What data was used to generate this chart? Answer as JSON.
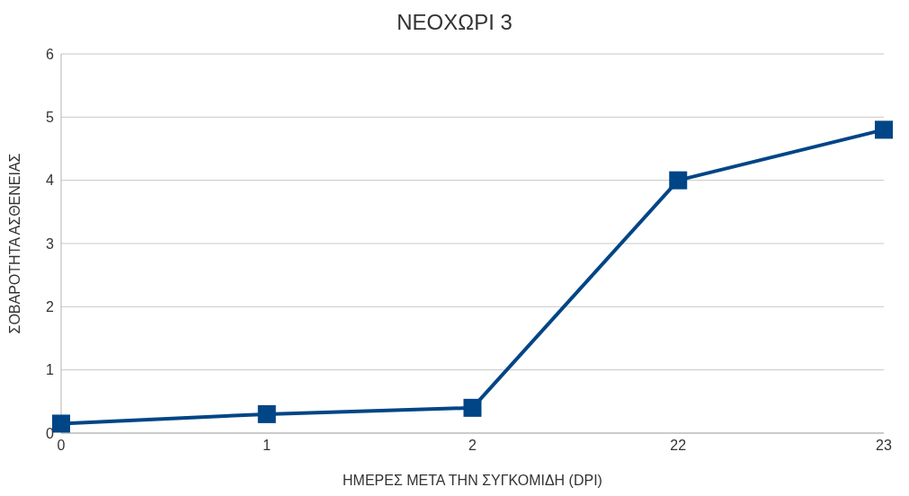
{
  "chart_data": {
    "type": "line",
    "title": "ΝΕΟΧΩΡΙ 3",
    "xlabel": "ΗΜΕΡΕΣ ΜΕΤΑ ΤΗΝ ΣΥΓΚΟΜΙΔΗ (DPI)",
    "ylabel": "ΣΟΒΑΡΟΤΗΤΑ  ΑΣΘΕΝΕΙΑΣ",
    "categories": [
      "0",
      "1",
      "2",
      "22",
      "23"
    ],
    "series": [
      {
        "color": "#004586",
        "values": [
          0.15,
          0.3,
          0.4,
          4,
          4.8
        ]
      }
    ],
    "ylim": [
      0,
      6
    ],
    "yticks": [
      0,
      1,
      2,
      3,
      4,
      5,
      6
    ],
    "grid": "y",
    "legend": false,
    "marker": "square",
    "line_style": "solid"
  }
}
